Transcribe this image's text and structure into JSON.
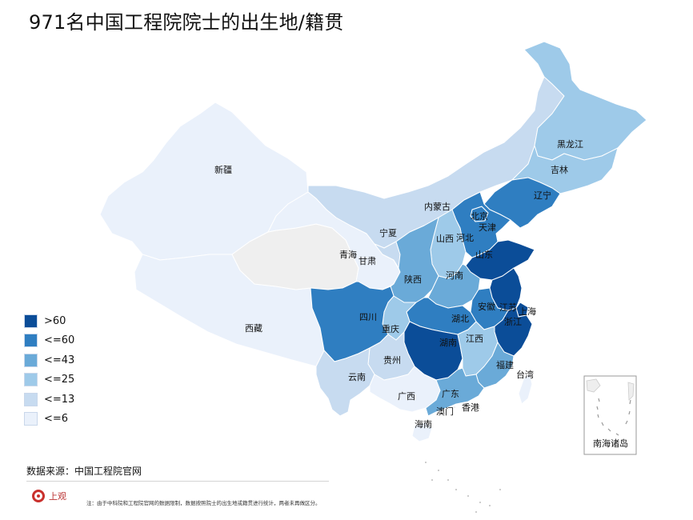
{
  "title": "971名中国工程院院士的出生地/籍贯",
  "legend": [
    {
      "label": ">60",
      "color": "#0b4d98"
    },
    {
      "label": "<=60",
      "color": "#2f7ec1"
    },
    {
      "label": "<=43",
      "color": "#6aaad8"
    },
    {
      "label": "<=25",
      "color": "#9ecae9"
    },
    {
      "label": "<=13",
      "color": "#c7dbf0"
    },
    {
      "label": "<=6",
      "color": "#eaf1fb"
    }
  ],
  "no_data_color": "#efefef",
  "provinces": [
    {
      "name": "新疆",
      "level": "<=6"
    },
    {
      "name": "西藏",
      "level": "<=6"
    },
    {
      "name": "青海",
      "level": "no-data"
    },
    {
      "name": "甘肃",
      "level": "<=6"
    },
    {
      "name": "内蒙古",
      "level": "<=13"
    },
    {
      "name": "宁夏",
      "level": "<=13"
    },
    {
      "name": "黑龙江",
      "level": "<=25"
    },
    {
      "name": "吉林",
      "level": "<=25"
    },
    {
      "name": "辽宁",
      "level": "<=60"
    },
    {
      "name": "北京",
      "level": "<=60"
    },
    {
      "name": "天津",
      "level": "<=25"
    },
    {
      "name": "河北",
      "level": "<=60"
    },
    {
      "name": "山西",
      "level": "<=25"
    },
    {
      "name": "山东",
      "level": ">60"
    },
    {
      "name": "河南",
      "level": "<=43"
    },
    {
      "name": "陕西",
      "level": "<=43"
    },
    {
      "name": "四川",
      "level": "<=60"
    },
    {
      "name": "重庆",
      "level": "<=25"
    },
    {
      "name": "湖北",
      "level": "<=60"
    },
    {
      "name": "安徽",
      "level": "<=60"
    },
    {
      "name": "江苏",
      "level": ">60"
    },
    {
      "name": "上海",
      "level": ">60"
    },
    {
      "name": "浙江",
      "level": ">60"
    },
    {
      "name": "湖南",
      "level": ">60"
    },
    {
      "name": "江西",
      "level": "<=25"
    },
    {
      "name": "福建",
      "level": "<=43"
    },
    {
      "name": "贵州",
      "level": "<=13"
    },
    {
      "name": "云南",
      "level": "<=13"
    },
    {
      "name": "广西",
      "level": "<=6"
    },
    {
      "name": "广东",
      "level": "<=43"
    },
    {
      "name": "海南",
      "level": "<=6"
    },
    {
      "name": "台湾",
      "level": "<=6"
    },
    {
      "name": "香港",
      "level": "no-data"
    },
    {
      "name": "澳门",
      "level": "no-data"
    }
  ],
  "inset_label": "南海诸岛",
  "source": "数据来源：中国工程院官网",
  "logo": "上观",
  "note": "注：由于中科院和工程院官网的数据限制，数据按照院士的出生地或籍贯进行统计，两者未再做区分。"
}
